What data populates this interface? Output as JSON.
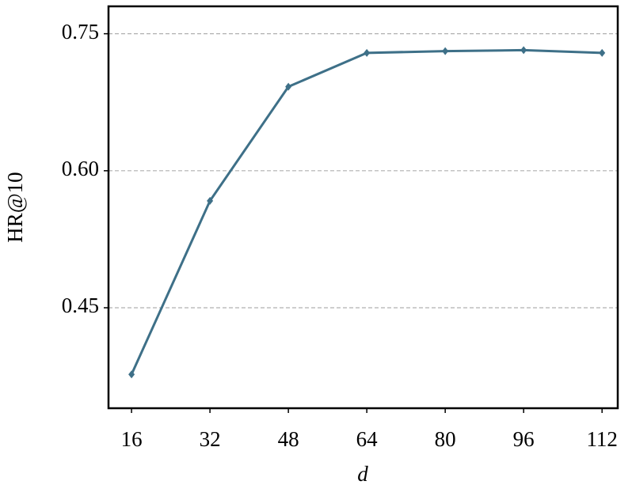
{
  "chart_data": {
    "type": "line",
    "x_label": "d",
    "y_label": "HR@10",
    "x": [
      16,
      32,
      48,
      64,
      80,
      96,
      112
    ],
    "series": [
      {
        "name": "HR@10",
        "color": "#3e7088",
        "values": [
          0.377,
          0.567,
          0.692,
          0.729,
          0.731,
          0.732,
          0.729
        ]
      }
    ],
    "xlim": [
      11.3,
      115.2
    ],
    "ylim": [
      0.34,
      0.78
    ],
    "xticks": [
      16,
      32,
      48,
      64,
      80,
      96,
      112
    ],
    "yticks": [
      {
        "value": 0.45,
        "label": "0.45"
      },
      {
        "value": 0.6,
        "label": "0.60"
      },
      {
        "value": 0.75,
        "label": "0.75"
      }
    ],
    "grid": true
  }
}
